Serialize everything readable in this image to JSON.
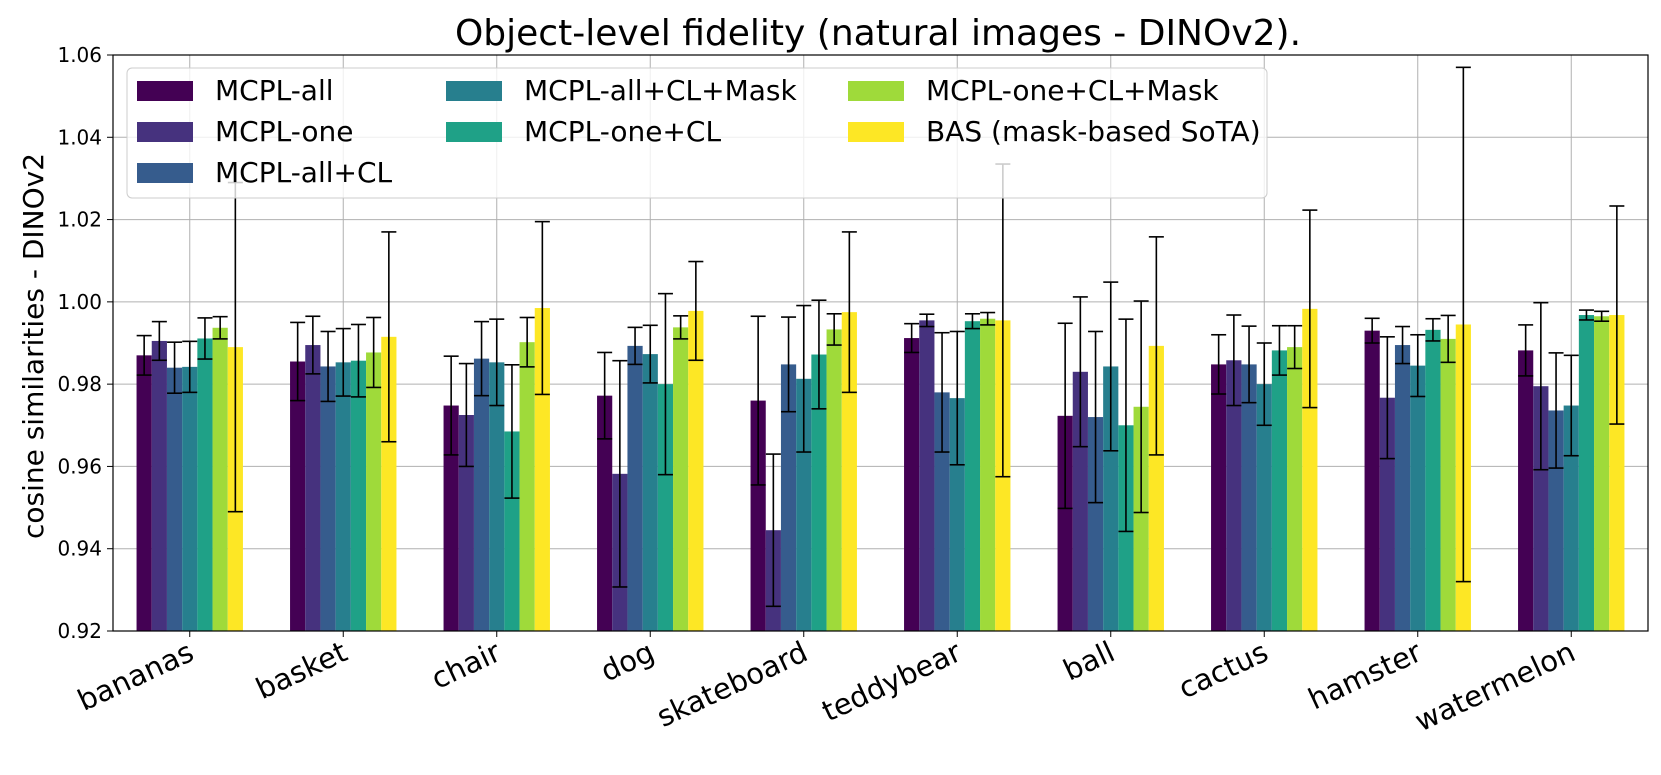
{
  "chart_data": {
    "type": "bar",
    "title": "Object-level fidelity (natural images - DINOv2).",
    "xlabel": "",
    "ylabel": "cosine similarities - DINOv2",
    "ylim": [
      0.92,
      1.06
    ],
    "yticks": [
      "0.92",
      "0.94",
      "0.96",
      "0.98",
      "1.00",
      "1.02",
      "1.04",
      "1.06"
    ],
    "grid": true,
    "legend_position": "top-left",
    "categories": [
      "bananas",
      "basket",
      "chair",
      "dog",
      "skateboard",
      "teddybear",
      "ball",
      "cactus",
      "hamster",
      "watermelon"
    ],
    "series": [
      {
        "name": "MCPL-all",
        "color": "#440154",
        "values": [
          0.987,
          0.9855,
          0.9748,
          0.9772,
          0.976,
          0.9912,
          0.9723,
          0.9848,
          0.993,
          0.9882
        ],
        "errors": [
          0.0048,
          0.0095,
          0.012,
          0.0105,
          0.0205,
          0.0035,
          0.0225,
          0.0072,
          0.003,
          0.0062
        ]
      },
      {
        "name": "MCPL-one",
        "color": "#46327e",
        "values": [
          0.9905,
          0.9895,
          0.9725,
          0.9582,
          0.9445,
          0.9955,
          0.983,
          0.9858,
          0.9767,
          0.9795
        ],
        "errors": [
          0.0047,
          0.007,
          0.0125,
          0.0275,
          0.0185,
          0.0015,
          0.0182,
          0.011,
          0.0148,
          0.0203
        ]
      },
      {
        "name": "MCPL-all+CL",
        "color": "#365c8d",
        "values": [
          0.984,
          0.9843,
          0.9862,
          0.9893,
          0.9848,
          0.978,
          0.972,
          0.9848,
          0.9895,
          0.9736
        ]
      },
      {
        "name": "MCPL-all+CL+Mask",
        "color": "#277f8e",
        "values": [
          0.9842,
          0.9853,
          0.9853,
          0.9873,
          0.9813,
          0.9766,
          0.9843,
          0.98,
          0.9845,
          0.9748
        ]
      },
      {
        "name": "MCPL-one+CL",
        "color": "#1fa187",
        "values": [
          0.9911,
          0.9857,
          0.9685,
          0.98,
          0.9872,
          0.9953,
          0.97,
          0.9882,
          0.9932,
          0.9968
        ]
      },
      {
        "name": "MCPL-one+CL+Mask",
        "color": "#9fda3a",
        "values": [
          0.9937,
          0.9877,
          0.9902,
          0.9938,
          0.9933,
          0.9959,
          0.9745,
          0.989,
          0.991,
          0.9965
        ]
      },
      {
        "name": "BAS (mask-based SoTA)",
        "color": "#fde725",
        "values": [
          0.989,
          0.9915,
          0.9985,
          0.9978,
          0.9975,
          0.9955,
          0.9893,
          0.9983,
          0.9945,
          0.9968
        ],
        "errors": [
          0.04,
          0.0255,
          0.021,
          0.012,
          0.0195,
          0.038,
          0.0265,
          0.024,
          0.0625,
          0.0265
        ]
      }
    ],
    "error_bars_all_series": [
      [
        0.0048,
        0.0095,
        0.012,
        0.0105,
        0.0205,
        0.0035,
        0.0225,
        0.0072,
        0.003,
        0.0062
      ],
      [
        0.0047,
        0.007,
        0.0125,
        0.0275,
        0.0185,
        0.0015,
        0.0182,
        0.011,
        0.0148,
        0.0203
      ],
      [
        0.0062,
        0.0085,
        0.009,
        0.0045,
        0.0115,
        0.0145,
        0.0208,
        0.0093,
        0.0045,
        0.014
      ],
      [
        0.0062,
        0.0082,
        0.0105,
        0.007,
        0.0178,
        0.0162,
        0.0205,
        0.01,
        0.0075,
        0.0122
      ],
      [
        0.005,
        0.0088,
        0.0162,
        0.022,
        0.0132,
        0.0018,
        0.0258,
        0.006,
        0.0027,
        0.0012
      ],
      [
        0.0027,
        0.0085,
        0.006,
        0.0028,
        0.0038,
        0.0015,
        0.0257,
        0.0052,
        0.0057,
        0.0012
      ],
      [
        0.04,
        0.0255,
        0.021,
        0.012,
        0.0195,
        0.038,
        0.0265,
        0.024,
        0.0625,
        0.0265
      ]
    ]
  }
}
